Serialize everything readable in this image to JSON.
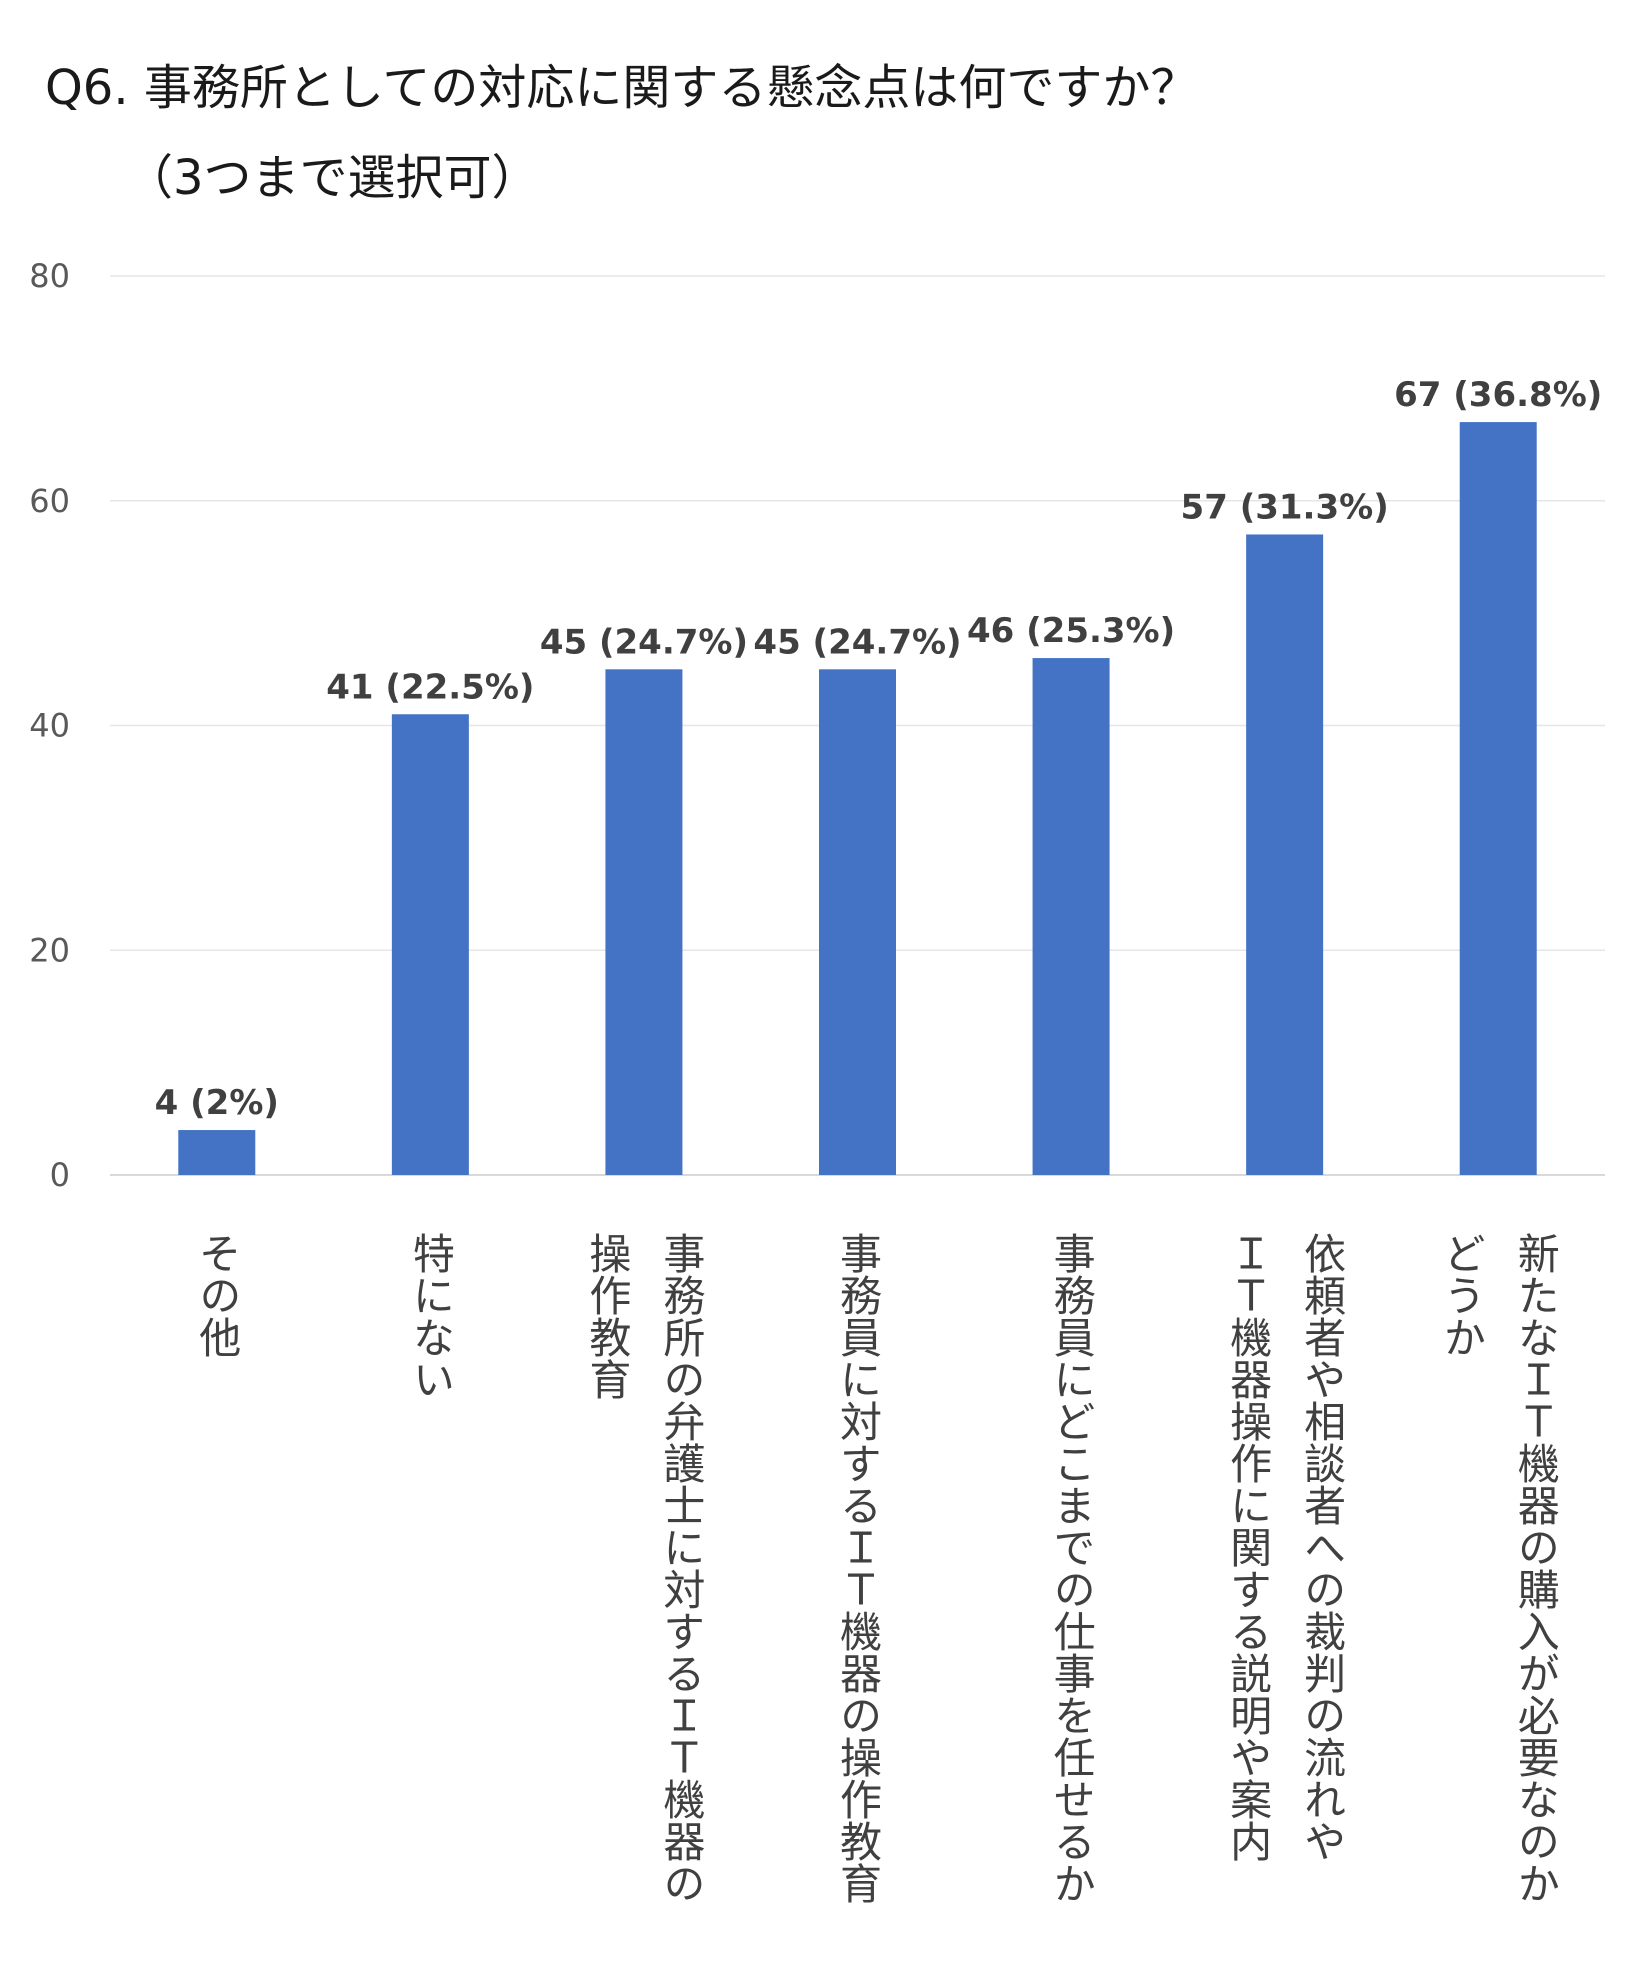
{
  "title": "Q6. 事務所としての対応に関する懸念点は何ですか？",
  "subtitle": "（3つまで選択可）",
  "chart_data": {
    "type": "bar",
    "categories": [
      "その他",
      "特にない",
      "事務所の弁護士に対するＩＴ機器の\n操作教育",
      "事務員に対するＩＴ機器の操作教育",
      "事務員にどこまでの仕事を任せるか",
      "依頼者や相談者への裁判の流れや\nＩＴ機器操作に関する説明や案内",
      "新たなＩＴ機器の購入が必要なのか\nどうか"
    ],
    "values": [
      4,
      41,
      45,
      45,
      46,
      57,
      67
    ],
    "data_labels": [
      "4 (2%)",
      "41 (22.5%)",
      "45 (24.7%)",
      "45 (24.7%)",
      "46 (25.3%)",
      "57 (31.3%)",
      "67 (36.8%)"
    ],
    "ylim": [
      0,
      80
    ],
    "yticks": [
      0,
      20,
      40,
      60,
      80
    ],
    "grid": true,
    "bar_color": "#4472c4",
    "grid_color": "#e6e6e6"
  }
}
